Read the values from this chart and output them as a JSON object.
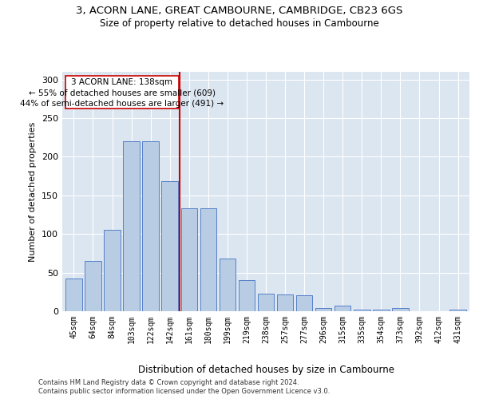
{
  "title1": "3, ACORN LANE, GREAT CAMBOURNE, CAMBRIDGE, CB23 6GS",
  "title2": "Size of property relative to detached houses in Cambourne",
  "xlabel": "Distribution of detached houses by size in Cambourne",
  "ylabel": "Number of detached properties",
  "footer1": "Contains HM Land Registry data © Crown copyright and database right 2024.",
  "footer2": "Contains public sector information licensed under the Open Government Licence v3.0.",
  "annotation_line1": "3 ACORN LANE: 138sqm",
  "annotation_line2": "← 55% of detached houses are smaller (609)",
  "annotation_line3": "44% of semi-detached houses are larger (491) →",
  "bar_color": "#b8cce4",
  "bar_edge_color": "#4472c4",
  "bg_color": "#dce6f1",
  "grid_color": "#ffffff",
  "vline_color": "#cc0000",
  "vline_position": 5.5,
  "categories": [
    "45sqm",
    "64sqm",
    "84sqm",
    "103sqm",
    "122sqm",
    "142sqm",
    "161sqm",
    "180sqm",
    "199sqm",
    "219sqm",
    "238sqm",
    "257sqm",
    "277sqm",
    "296sqm",
    "315sqm",
    "335sqm",
    "354sqm",
    "373sqm",
    "392sqm",
    "412sqm",
    "431sqm"
  ],
  "values": [
    42,
    65,
    105,
    220,
    220,
    168,
    133,
    133,
    68,
    40,
    23,
    22,
    21,
    4,
    7,
    2,
    2,
    4,
    0,
    0,
    2
  ],
  "ylim": [
    0,
    310
  ],
  "yticks": [
    0,
    50,
    100,
    150,
    200,
    250,
    300
  ],
  "figsize": [
    6.0,
    5.0
  ],
  "dpi": 100
}
